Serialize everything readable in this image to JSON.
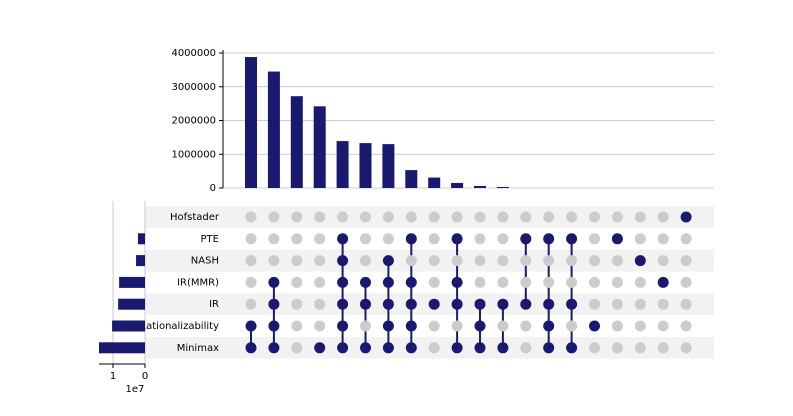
{
  "chart_data": {
    "type": "upset",
    "sets": [
      "Hofstader",
      "PTE",
      "NASH",
      "IR(MMR)",
      "IR",
      "Rationalizability",
      "Minimax"
    ],
    "set_sizes": [
      0,
      2200000,
      2800000,
      8100000,
      8400000,
      10300000,
      14400000
    ],
    "set_color": "#191970",
    "set_xlim": [
      0,
      14400000
    ],
    "set_xticks": [
      {
        "value": 10000000,
        "label": "1"
      },
      0
    ],
    "set_x_offset_label": "1e7",
    "intersection_values": [
      3880000,
      3450000,
      2720000,
      2420000,
      1390000,
      1330000,
      1300000,
      530000,
      310000,
      150000,
      60000,
      30000,
      0,
      0,
      0,
      0,
      0,
      0,
      0,
      0
    ],
    "color": "#191970",
    "inactive_color": "#cccccc",
    "ylim": [
      0,
      4000000
    ],
    "yticks": [
      0,
      1000000,
      2000000,
      3000000,
      4000000
    ],
    "grid": true,
    "membership": [
      [
        0,
        0,
        0,
        0,
        0,
        0,
        0,
        0,
        0,
        0,
        0,
        0,
        0,
        0,
        0,
        0,
        0,
        0,
        0,
        1
      ],
      [
        0,
        0,
        0,
        0,
        1,
        0,
        0,
        1,
        0,
        1,
        0,
        0,
        1,
        1,
        1,
        0,
        1,
        0,
        0,
        0
      ],
      [
        0,
        0,
        0,
        0,
        1,
        0,
        1,
        0,
        0,
        0,
        0,
        0,
        0,
        0,
        0,
        0,
        0,
        1,
        0,
        0
      ],
      [
        0,
        1,
        0,
        0,
        1,
        1,
        1,
        1,
        0,
        1,
        0,
        0,
        0,
        0,
        0,
        0,
        0,
        0,
        1,
        0
      ],
      [
        0,
        1,
        0,
        0,
        1,
        1,
        1,
        1,
        1,
        1,
        1,
        1,
        1,
        1,
        1,
        0,
        0,
        0,
        0,
        0
      ],
      [
        1,
        1,
        0,
        0,
        1,
        0,
        1,
        1,
        0,
        0,
        1,
        0,
        0,
        1,
        0,
        1,
        0,
        0,
        0,
        0
      ],
      [
        1,
        1,
        0,
        1,
        1,
        1,
        1,
        1,
        0,
        1,
        1,
        1,
        0,
        1,
        1,
        0,
        0,
        0,
        0,
        0
      ]
    ]
  }
}
